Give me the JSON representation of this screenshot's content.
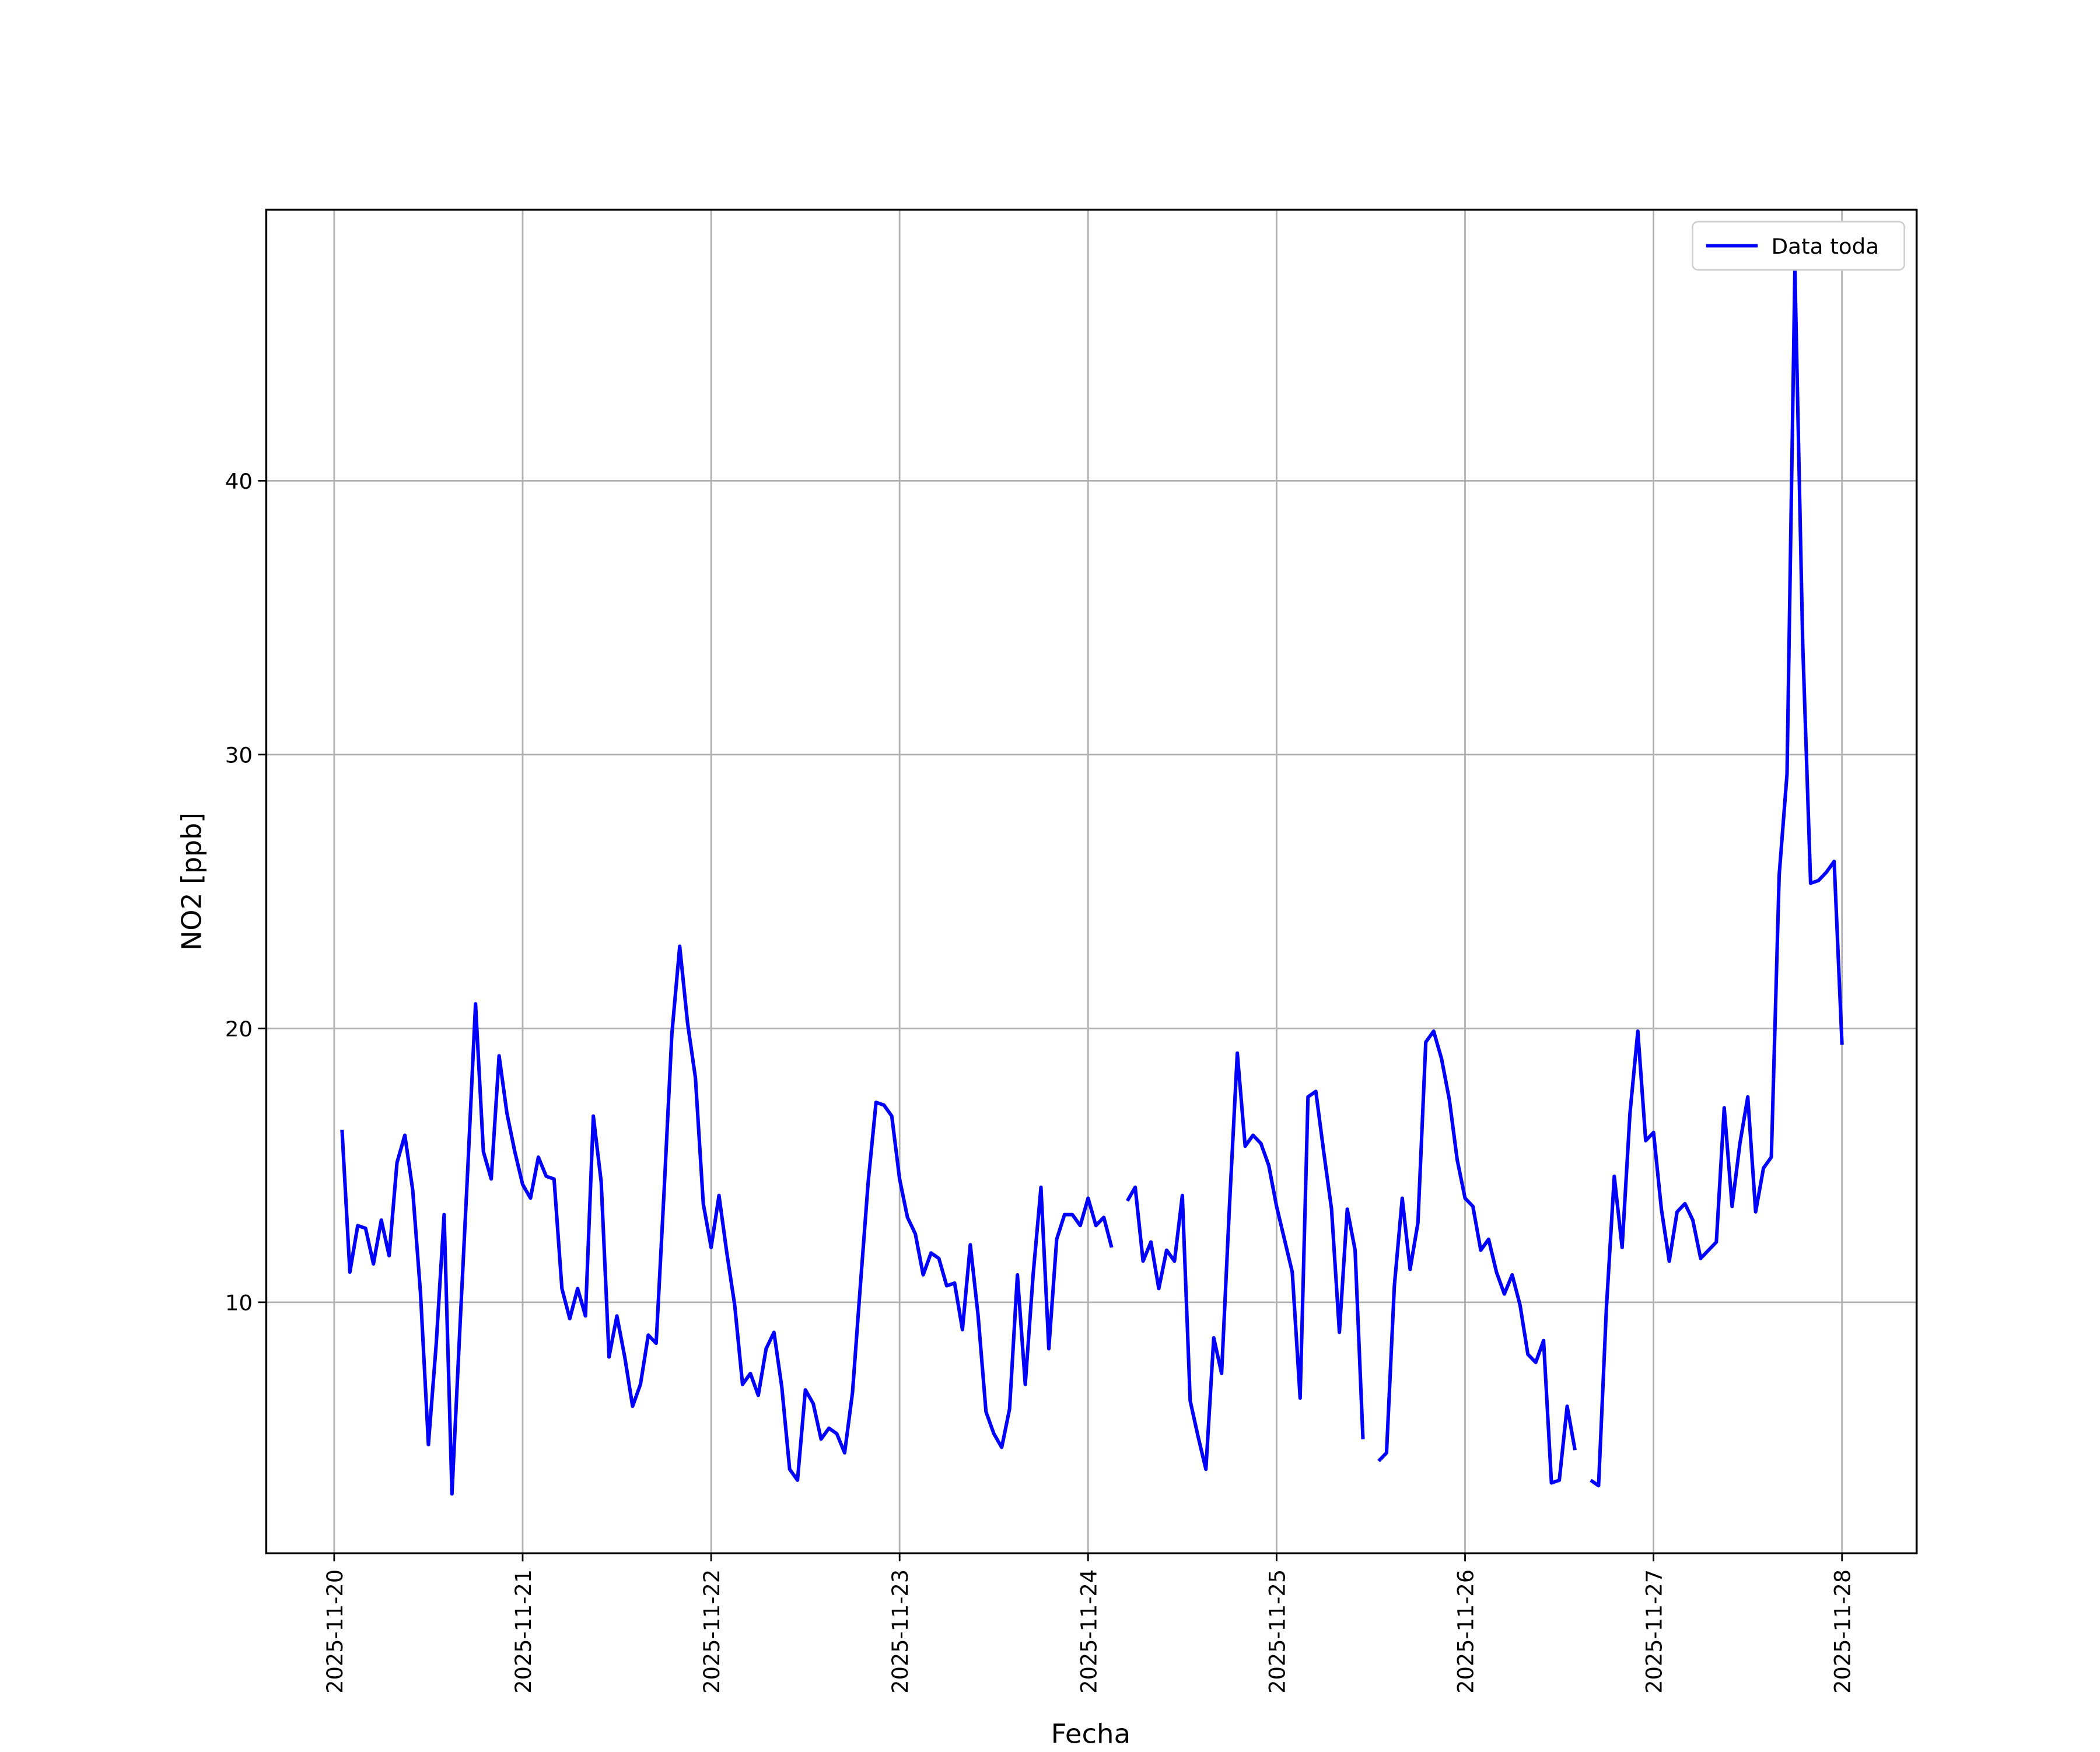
{
  "chart_data": {
    "type": "line",
    "xlabel": "Fecha",
    "ylabel": "NO2 [ppb]",
    "x": [
      "2025-11-20 01:00",
      "2025-11-20 02:00",
      "2025-11-20 03:00",
      "2025-11-20 04:00",
      "2025-11-20 05:00",
      "2025-11-20 06:00",
      "2025-11-20 07:00",
      "2025-11-20 08:00",
      "2025-11-20 09:00",
      "2025-11-20 10:00",
      "2025-11-20 11:00",
      "2025-11-20 12:00",
      "2025-11-20 13:00",
      "2025-11-20 14:00",
      "2025-11-20 15:00",
      "2025-11-20 16:00",
      "2025-11-20 17:00",
      "2025-11-20 18:00",
      "2025-11-20 19:00",
      "2025-11-20 20:00",
      "2025-11-20 21:00",
      "2025-11-20 22:00",
      "2025-11-20 23:00",
      "2025-11-21 00:00",
      "2025-11-21 01:00",
      "2025-11-21 02:00",
      "2025-11-21 03:00",
      "2025-11-21 04:00",
      "2025-11-21 05:00",
      "2025-11-21 06:00",
      "2025-11-21 07:00",
      "2025-11-21 08:00",
      "2025-11-21 09:00",
      "2025-11-21 10:00",
      "2025-11-21 11:00",
      "2025-11-21 12:00",
      "2025-11-21 13:00",
      "2025-11-21 14:00",
      "2025-11-21 15:00",
      "2025-11-21 16:00",
      "2025-11-21 17:00",
      "2025-11-21 18:00",
      "2025-11-21 19:00",
      "2025-11-21 20:00",
      "2025-11-21 21:00",
      "2025-11-21 22:00",
      "2025-11-21 23:00",
      "2025-11-22 00:00",
      "2025-11-22 01:00",
      "2025-11-22 02:00",
      "2025-11-22 03:00",
      "2025-11-22 04:00",
      "2025-11-22 05:00",
      "2025-11-22 06:00",
      "2025-11-22 07:00",
      "2025-11-22 08:00",
      "2025-11-22 09:00",
      "2025-11-22 10:00",
      "2025-11-22 11:00",
      "2025-11-22 12:00",
      "2025-11-22 13:00",
      "2025-11-22 14:00",
      "2025-11-22 15:00",
      "2025-11-22 16:00",
      "2025-11-22 17:00",
      "2025-11-22 18:00",
      "2025-11-22 19:00",
      "2025-11-22 20:00",
      "2025-11-22 21:00",
      "2025-11-22 22:00",
      "2025-11-22 23:00",
      "2025-11-23 00:00",
      "2025-11-23 01:00",
      "2025-11-23 02:00",
      "2025-11-23 03:00",
      "2025-11-23 04:00",
      "2025-11-23 05:00",
      "2025-11-23 06:00",
      "2025-11-23 07:00",
      "2025-11-23 08:00",
      "2025-11-23 09:00",
      "2025-11-23 10:00",
      "2025-11-23 11:00",
      "2025-11-23 12:00",
      "2025-11-23 13:00",
      "2025-11-23 14:00",
      "2025-11-23 15:00",
      "2025-11-23 16:00",
      "2025-11-23 17:00",
      "2025-11-23 18:00",
      "2025-11-23 19:00",
      "2025-11-23 20:00",
      "2025-11-23 21:00",
      "2025-11-23 22:00",
      "2025-11-23 23:00",
      "2025-11-24 00:00",
      "2025-11-24 01:00",
      "2025-11-24 02:00",
      "2025-11-24 03:00",
      "2025-11-24 04:00",
      "2025-11-24 05:00",
      "2025-11-24 06:00",
      "2025-11-24 07:00",
      "2025-11-24 08:00",
      "2025-11-24 09:00",
      "2025-11-24 10:00",
      "2025-11-24 11:00",
      "2025-11-24 12:00",
      "2025-11-24 13:00",
      "2025-11-24 14:00",
      "2025-11-24 15:00",
      "2025-11-24 16:00",
      "2025-11-24 17:00",
      "2025-11-24 18:00",
      "2025-11-24 19:00",
      "2025-11-24 20:00",
      "2025-11-24 21:00",
      "2025-11-24 22:00",
      "2025-11-24 23:00",
      "2025-11-25 00:00",
      "2025-11-25 01:00",
      "2025-11-25 02:00",
      "2025-11-25 03:00",
      "2025-11-25 04:00",
      "2025-11-25 05:00",
      "2025-11-25 06:00",
      "2025-11-25 07:00",
      "2025-11-25 08:00",
      "2025-11-25 09:00",
      "2025-11-25 10:00",
      "2025-11-25 11:00",
      "2025-11-25 12:00",
      "2025-11-25 13:00",
      "2025-11-25 14:00",
      "2025-11-25 15:00",
      "2025-11-25 16:00",
      "2025-11-25 17:00",
      "2025-11-25 18:00",
      "2025-11-25 19:00",
      "2025-11-25 20:00",
      "2025-11-25 21:00",
      "2025-11-25 22:00",
      "2025-11-25 23:00",
      "2025-11-26 00:00",
      "2025-11-26 01:00",
      "2025-11-26 02:00",
      "2025-11-26 03:00",
      "2025-11-26 04:00",
      "2025-11-26 05:00",
      "2025-11-26 06:00",
      "2025-11-26 07:00",
      "2025-11-26 08:00",
      "2025-11-26 09:00",
      "2025-11-26 10:00",
      "2025-11-26 11:00",
      "2025-11-26 12:00",
      "2025-11-26 13:00",
      "2025-11-26 14:00",
      "2025-11-26 15:00",
      "2025-11-26 16:00",
      "2025-11-26 17:00",
      "2025-11-26 18:00",
      "2025-11-26 19:00",
      "2025-11-26 20:00",
      "2025-11-26 21:00",
      "2025-11-26 22:00",
      "2025-11-26 23:00",
      "2025-11-27 00:00",
      "2025-11-27 01:00",
      "2025-11-27 02:00",
      "2025-11-27 03:00",
      "2025-11-27 04:00",
      "2025-11-27 05:00",
      "2025-11-27 06:00",
      "2025-11-27 07:00",
      "2025-11-27 08:00",
      "2025-11-27 09:00",
      "2025-11-27 10:00",
      "2025-11-27 11:00",
      "2025-11-27 12:00",
      "2025-11-27 13:00",
      "2025-11-27 14:00",
      "2025-11-27 15:00",
      "2025-11-27 16:00",
      "2025-11-27 17:00",
      "2025-11-27 18:00",
      "2025-11-27 19:00",
      "2025-11-27 20:00",
      "2025-11-27 21:00",
      "2025-11-27 22:00",
      "2025-11-27 23:00",
      "2025-11-28 00:00"
    ],
    "series": [
      {
        "name": "Data toda",
        "color": "#0000ff",
        "values": [
          16.3,
          11.1,
          12.8,
          12.7,
          11.4,
          13.0,
          11.7,
          15.1,
          16.1,
          14.1,
          10.3,
          4.8,
          8.5,
          13.2,
          3.0,
          9.0,
          14.8,
          20.9,
          15.5,
          14.5,
          19.0,
          16.9,
          15.5,
          14.3,
          13.8,
          15.3,
          14.6,
          14.5,
          10.5,
          9.4,
          10.5,
          9.5,
          16.8,
          14.4,
          8.0,
          9.5,
          8.0,
          6.2,
          7.0,
          8.8,
          8.5,
          14.0,
          19.8,
          23.0,
          20.2,
          18.2,
          13.6,
          12.0,
          13.9,
          11.8,
          9.9,
          7.0,
          7.4,
          6.6,
          8.3,
          8.9,
          6.9,
          3.9,
          3.5,
          6.8,
          6.3,
          5.0,
          5.4,
          5.2,
          4.5,
          6.7,
          10.6,
          14.4,
          17.3,
          17.2,
          16.8,
          14.5,
          13.1,
          12.5,
          11.0,
          11.8,
          11.6,
          10.6,
          10.7,
          9.0,
          12.1,
          9.5,
          6.0,
          5.2,
          4.7,
          6.1,
          11.0,
          7.0,
          11.0,
          14.2,
          8.3,
          12.3,
          13.2,
          13.2,
          12.8,
          13.8,
          12.8,
          13.1,
          12.0,
          null,
          13.7,
          14.2,
          11.5,
          12.2,
          10.5,
          11.9,
          11.5,
          13.9,
          6.4,
          5.1,
          3.9,
          8.7,
          7.4,
          13.5,
          19.1,
          15.7,
          16.1,
          15.8,
          15.0,
          13.5,
          12.3,
          11.1,
          6.5,
          17.5,
          17.7,
          15.5,
          13.4,
          8.9,
          13.4,
          11.9,
          5.0,
          null,
          4.2,
          4.5,
          10.6,
          13.8,
          11.2,
          12.9,
          19.5,
          19.9,
          18.9,
          17.4,
          15.2,
          13.8,
          13.5,
          11.9,
          12.3,
          11.1,
          10.3,
          11.0,
          9.9,
          8.1,
          7.8,
          8.6,
          3.4,
          3.5,
          6.2,
          4.6,
          null,
          3.5,
          3.3,
          9.8,
          14.6,
          12.0,
          16.9,
          19.9,
          15.9,
          16.2,
          13.4,
          11.5,
          13.3,
          13.6,
          13.0,
          11.6,
          11.9,
          12.2,
          17.1,
          13.5,
          15.8,
          17.5,
          13.3,
          14.9,
          15.3,
          25.6,
          29.3,
          47.7,
          34.0,
          25.3,
          25.4,
          25.7,
          26.1,
          19.4
        ]
      }
    ],
    "xlim": [
      "2025-11-19 15:21",
      "2025-11-28 09:30"
    ],
    "xticks": [
      "2025-11-20",
      "2025-11-21",
      "2025-11-22",
      "2025-11-23",
      "2025-11-24",
      "2025-11-25",
      "2025-11-26",
      "2025-11-27",
      "2025-11-28"
    ],
    "ylim": [
      0.83,
      49.9
    ],
    "yticks": [
      10,
      20,
      30,
      40
    ],
    "grid": true,
    "legend": "upper right"
  }
}
